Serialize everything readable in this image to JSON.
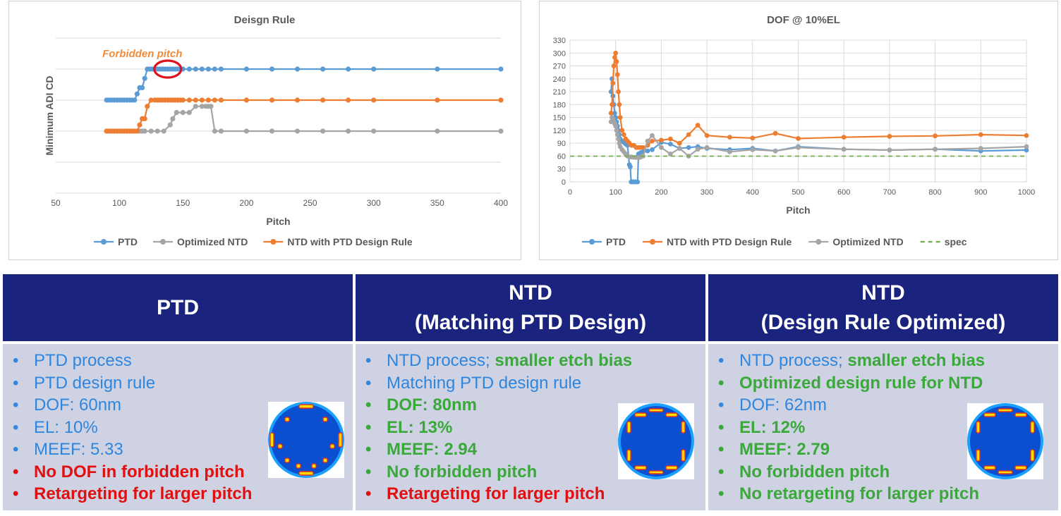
{
  "colors": {
    "blue": "#5b9bd5",
    "orange": "#ed7d31",
    "gray": "#a5a5a5",
    "green": "#70ad47",
    "header": "#1a237e",
    "body": "#cfd2e3",
    "red_circle": "#e0101a",
    "annot": "#f08b3c"
  },
  "chart_data": [
    {
      "type": "line",
      "title": "Deisgn Rule",
      "xlabel": "Pitch",
      "ylabel": "Minimum ADI CD",
      "xlim": [
        50,
        400
      ],
      "xticks": [
        50,
        100,
        150,
        200,
        250,
        300,
        350,
        400
      ],
      "ylim": [
        0,
        5
      ],
      "yticks": [
        0,
        1,
        2,
        3,
        4,
        5
      ],
      "ytick_labels_shown": false,
      "grid": true,
      "legend_position": "bottom",
      "annotation": {
        "text": "Forbidden pitch",
        "at_x": [
          127,
          148
        ],
        "at_y": 4
      },
      "series": [
        {
          "name": "PTD",
          "color": "#5b9bd5",
          "x": [
            90,
            92,
            94,
            96,
            98,
            100,
            102,
            104,
            106,
            108,
            110,
            112,
            114,
            116,
            118,
            120,
            122,
            124,
            126,
            128,
            130,
            132,
            134,
            136,
            138,
            140,
            142,
            144,
            146,
            148,
            150,
            155,
            160,
            165,
            170,
            175,
            180,
            200,
            220,
            240,
            260,
            280,
            300,
            350,
            400
          ],
          "y": [
            3,
            3,
            3,
            3,
            3,
            3,
            3,
            3,
            3,
            3,
            3,
            3,
            3.2,
            3.4,
            3.4,
            3.7,
            4,
            4,
            4,
            4,
            4,
            4,
            4,
            4,
            4,
            4,
            4,
            4,
            4,
            4,
            4,
            4,
            4,
            4,
            4,
            4,
            4,
            4,
            4,
            4,
            4,
            4,
            4,
            4,
            4
          ]
        },
        {
          "name": "Optimized NTD",
          "color": "#a5a5a5",
          "x": [
            90,
            92,
            94,
            96,
            98,
            100,
            102,
            104,
            106,
            108,
            110,
            112,
            114,
            116,
            118,
            120,
            125,
            130,
            135,
            140,
            142,
            145,
            150,
            155,
            160,
            165,
            168,
            170,
            172,
            175,
            180,
            200,
            220,
            240,
            260,
            280,
            300,
            350,
            400
          ],
          "y": [
            2,
            2,
            2,
            2,
            2,
            2,
            2,
            2,
            2,
            2,
            2,
            2,
            2,
            2,
            2,
            2,
            2,
            2,
            2,
            2.2,
            2.4,
            2.6,
            2.6,
            2.6,
            2.8,
            2.8,
            2.8,
            2.8,
            2.8,
            2,
            2,
            2,
            2,
            2,
            2,
            2,
            2,
            2,
            2
          ]
        },
        {
          "name": "NTD with PTD Design Rule",
          "color": "#ed7d31",
          "x": [
            90,
            92,
            94,
            96,
            98,
            100,
            102,
            104,
            106,
            108,
            110,
            112,
            114,
            116,
            118,
            120,
            122,
            125,
            128,
            130,
            132,
            134,
            136,
            138,
            140,
            142,
            144,
            146,
            148,
            150,
            155,
            160,
            165,
            170,
            175,
            180,
            200,
            220,
            240,
            260,
            280,
            300,
            350,
            400
          ],
          "y": [
            2,
            2,
            2,
            2,
            2,
            2,
            2,
            2,
            2,
            2,
            2,
            2,
            2,
            2.2,
            2.4,
            2.4,
            2.8,
            3,
            3,
            3,
            3,
            3,
            3,
            3,
            3,
            3,
            3,
            3,
            3,
            3,
            3,
            3,
            3,
            3,
            3,
            3,
            3,
            3,
            3,
            3,
            3,
            3,
            3,
            3
          ]
        }
      ]
    },
    {
      "type": "line",
      "title": "DOF @ 10%EL",
      "xlabel": "Pitch",
      "xlim": [
        0,
        1000
      ],
      "xticks": [
        0,
        100,
        200,
        300,
        400,
        500,
        600,
        700,
        800,
        900,
        1000
      ],
      "ylim": [
        0,
        330
      ],
      "yticks": [
        0,
        30,
        60,
        90,
        120,
        150,
        180,
        210,
        240,
        270,
        300,
        330
      ],
      "grid": true,
      "legend_position": "bottom",
      "series": [
        {
          "name": "PTD",
          "color": "#5b9bd5",
          "x": [
            90,
            92,
            94,
            96,
            98,
            100,
            102,
            104,
            106,
            108,
            110,
            114,
            118,
            122,
            126,
            130,
            132,
            134,
            136,
            138,
            140,
            144,
            148,
            150,
            155,
            160,
            170,
            180,
            200,
            220,
            240,
            260,
            280,
            300,
            350,
            400,
            450,
            500,
            600,
            700,
            800,
            900,
            1000
          ],
          "y": [
            210,
            240,
            200,
            180,
            160,
            150,
            140,
            130,
            120,
            110,
            100,
            95,
            92,
            88,
            85,
            40,
            35,
            0,
            0,
            0,
            0,
            0,
            0,
            65,
            68,
            70,
            72,
            75,
            92,
            88,
            78,
            80,
            82,
            78,
            75,
            78,
            72,
            82,
            76,
            74,
            76,
            72,
            74
          ]
        },
        {
          "name": "NTD with PTD Design Rule",
          "color": "#ed7d31",
          "x": [
            90,
            92,
            94,
            96,
            98,
            100,
            102,
            104,
            106,
            108,
            110,
            114,
            118,
            122,
            126,
            130,
            135,
            140,
            145,
            150,
            155,
            160,
            170,
            180,
            200,
            220,
            240,
            260,
            280,
            300,
            350,
            400,
            450,
            500,
            600,
            700,
            800,
            900,
            1000
          ],
          "y": [
            160,
            180,
            230,
            270,
            290,
            300,
            280,
            250,
            210,
            180,
            150,
            120,
            110,
            100,
            95,
            90,
            85,
            85,
            80,
            80,
            80,
            80,
            85,
            95,
            97,
            100,
            90,
            110,
            132,
            108,
            104,
            102,
            113,
            101,
            104,
            106,
            107,
            110,
            108
          ]
        },
        {
          "name": "Optimized NTD",
          "color": "#a5a5a5",
          "x": [
            90,
            92,
            94,
            96,
            98,
            100,
            102,
            104,
            106,
            108,
            110,
            114,
            118,
            122,
            126,
            130,
            135,
            140,
            145,
            150,
            155,
            160,
            170,
            180,
            200,
            220,
            240,
            260,
            280,
            300,
            350,
            400,
            450,
            500,
            600,
            700,
            800,
            900,
            1000
          ],
          "y": [
            140,
            150,
            145,
            140,
            135,
            130,
            120,
            110,
            100,
            90,
            82,
            75,
            70,
            65,
            60,
            58,
            58,
            57,
            57,
            56,
            58,
            60,
            95,
            108,
            80,
            65,
            78,
            60,
            76,
            80,
            70,
            75,
            72,
            80,
            76,
            74,
            76,
            78,
            82
          ]
        },
        {
          "name": "spec",
          "color": "#70ad47",
          "dashed": true,
          "x": [
            0,
            1000
          ],
          "y": [
            60,
            60
          ]
        }
      ]
    }
  ],
  "table": {
    "columns": [
      {
        "header": [
          "PTD"
        ],
        "bullets": [
          {
            "parts": [
              {
                "text": "PTD process",
                "style": "blue"
              }
            ]
          },
          {
            "parts": [
              {
                "text": "PTD design rule",
                "style": "blue"
              }
            ]
          },
          {
            "parts": [
              {
                "text": "DOF: 60nm",
                "style": "blue"
              }
            ]
          },
          {
            "parts": [
              {
                "text": "EL: 10%",
                "style": "blue"
              }
            ]
          },
          {
            "parts": [
              {
                "text": "MEEF: 5.33",
                "style": "blue"
              }
            ]
          },
          {
            "parts": [
              {
                "text": "No DOF in forbidden pitch",
                "style": "red"
              }
            ],
            "bullet_style": "red"
          },
          {
            "parts": [
              {
                "text": "Retargeting for larger pitch",
                "style": "red"
              }
            ],
            "bullet_style": "red"
          }
        ],
        "pupil_icon": "pupil-fill-map-icon"
      },
      {
        "header": [
          "NTD",
          "(Matching PTD Design)"
        ],
        "bullets": [
          {
            "parts": [
              {
                "text": "NTD process; ",
                "style": "blue"
              },
              {
                "text": "smaller etch bias",
                "style": "green"
              }
            ]
          },
          {
            "parts": [
              {
                "text": "Matching PTD design rule",
                "style": "blue"
              }
            ]
          },
          {
            "parts": [
              {
                "text": "DOF: 80nm",
                "style": "green"
              }
            ],
            "bullet_style": "green"
          },
          {
            "parts": [
              {
                "text": "EL: 13%",
                "style": "green"
              }
            ],
            "bullet_style": "green"
          },
          {
            "parts": [
              {
                "text": "MEEF: 2.94",
                "style": "green"
              }
            ],
            "bullet_style": "green"
          },
          {
            "parts": [
              {
                "text": "No forbidden pitch",
                "style": "green"
              }
            ],
            "bullet_style": "green"
          },
          {
            "parts": [
              {
                "text": "Retargeting for larger pitch",
                "style": "red"
              }
            ],
            "bullet_style": "red"
          }
        ],
        "pupil_icon": "pupil-fill-map-icon"
      },
      {
        "header": [
          "NTD",
          "(Design Rule Optimized)"
        ],
        "bullets": [
          {
            "parts": [
              {
                "text": "NTD process; ",
                "style": "blue"
              },
              {
                "text": "smaller etch bias",
                "style": "green"
              }
            ]
          },
          {
            "parts": [
              {
                "text": "Optimized design rule for NTD",
                "style": "green"
              }
            ],
            "bullet_style": "green"
          },
          {
            "parts": [
              {
                "text": "DOF: 62nm",
                "style": "blue"
              }
            ]
          },
          {
            "parts": [
              {
                "text": "EL: 12%",
                "style": "green"
              }
            ],
            "bullet_style": "green"
          },
          {
            "parts": [
              {
                "text": "MEEF: 2.79",
                "style": "green"
              }
            ],
            "bullet_style": "green"
          },
          {
            "parts": [
              {
                "text": "No forbidden pitch",
                "style": "green"
              }
            ],
            "bullet_style": "green"
          },
          {
            "parts": [
              {
                "text": "No retargeting for larger pitch",
                "style": "green"
              }
            ],
            "bullet_style": "green"
          }
        ],
        "pupil_icon": "pupil-fill-map-icon"
      }
    ]
  }
}
